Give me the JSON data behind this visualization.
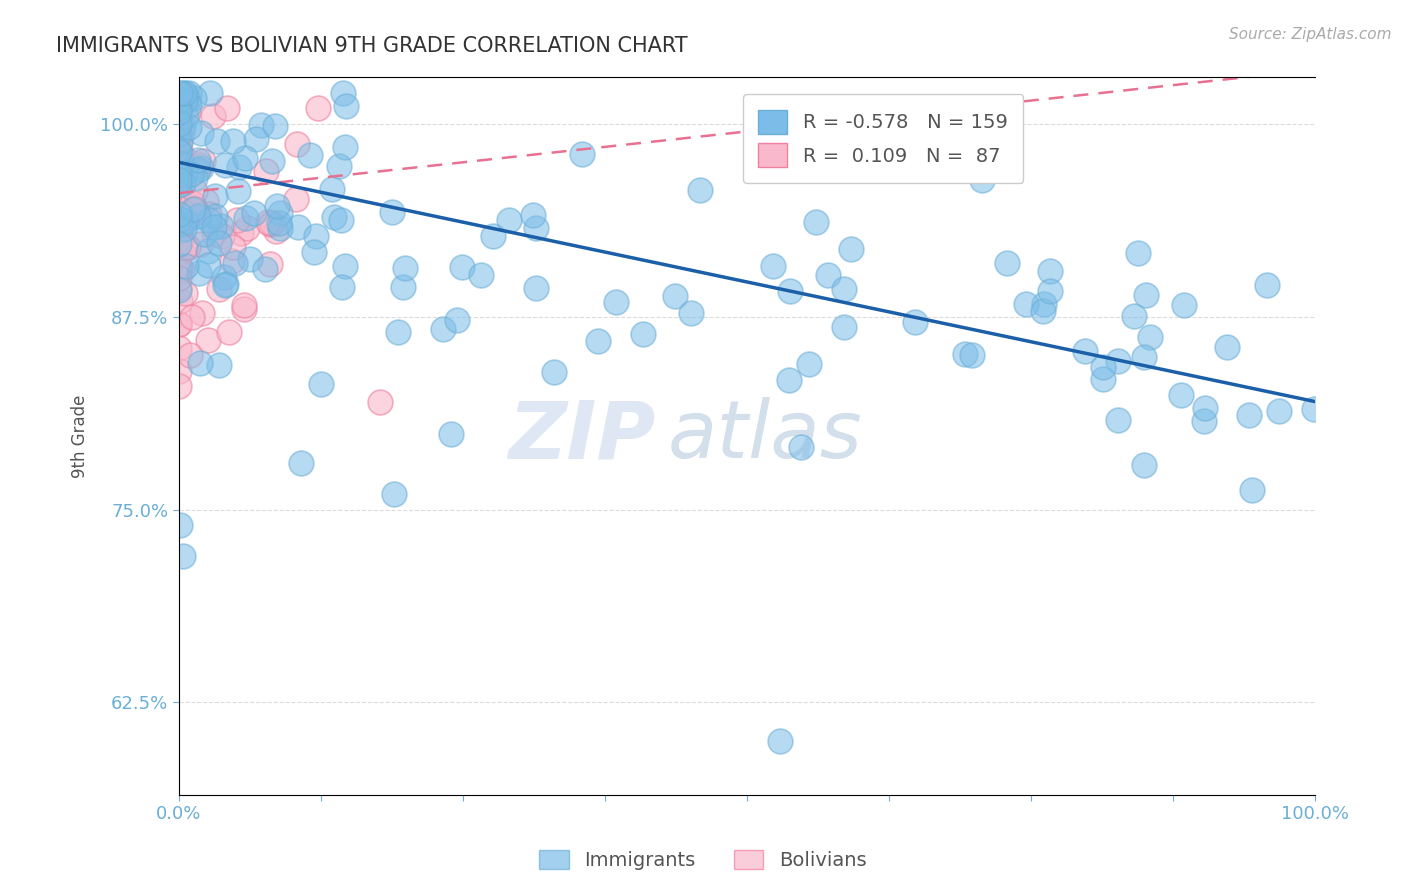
{
  "title": "IMMIGRANTS VS BOLIVIAN 9TH GRADE CORRELATION CHART",
  "source_text": "Source: ZipAtlas.com",
  "ylabel": "9th Grade",
  "ytick_labels": [
    "62.5%",
    "75.0%",
    "87.5%",
    "100.0%"
  ],
  "ytick_values": [
    0.625,
    0.75,
    0.875,
    1.0
  ],
  "xlim": [
    0.0,
    1.0
  ],
  "ylim": [
    0.565,
    1.03
  ],
  "immigrants_color": "#7bbde8",
  "immigrants_edge": "#6baed6",
  "bolivians_color": "#f9b8cb",
  "bolivians_edge": "#f080a0",
  "immigrants_R": -0.578,
  "immigrants_N": 159,
  "bolivians_R": 0.109,
  "bolivians_N": 87,
  "trend_blue_color": "#1a5fa8",
  "trend_pink_color": "#e87090",
  "background_color": "#ffffff",
  "grid_color": "#cccccc",
  "watermark_zip": "ZIP",
  "watermark_atlas": "atlas",
  "title_color": "#333333",
  "source_color": "#aaaaaa",
  "axis_color": "#6baed6",
  "ylabel_color": "#666666"
}
